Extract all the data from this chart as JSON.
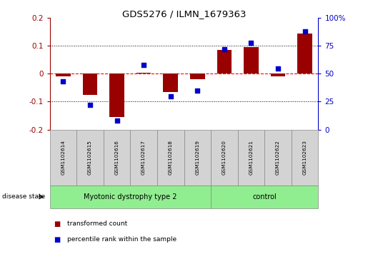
{
  "title": "GDS5276 / ILMN_1679363",
  "samples": [
    "GSM1102614",
    "GSM1102615",
    "GSM1102616",
    "GSM1102617",
    "GSM1102618",
    "GSM1102619",
    "GSM1102620",
    "GSM1102621",
    "GSM1102622",
    "GSM1102623"
  ],
  "red_values": [
    -0.01,
    -0.075,
    -0.155,
    0.005,
    -0.065,
    -0.02,
    0.085,
    0.095,
    -0.01,
    0.145
  ],
  "blue_values": [
    43,
    22,
    8,
    58,
    30,
    35,
    72,
    78,
    55,
    88
  ],
  "group1_label": "Myotonic dystrophy type 2",
  "group1_count": 6,
  "group2_label": "control",
  "group2_count": 4,
  "ylim_left": [
    -0.2,
    0.2
  ],
  "ylim_right": [
    0,
    100
  ],
  "yticks_left": [
    -0.2,
    -0.1,
    0.0,
    0.1,
    0.2
  ],
  "yticks_right": [
    0,
    25,
    50,
    75,
    100
  ],
  "ytick_labels_left": [
    "-0.2",
    "-0.1",
    "0",
    "0.1",
    "0.2"
  ],
  "ytick_labels_right": [
    "0",
    "25",
    "50",
    "75",
    "100%"
  ],
  "legend_red": "transformed count",
  "legend_blue": "percentile rank within the sample",
  "disease_state_label": "disease state",
  "bar_color": "#990000",
  "dot_color": "#0000cc",
  "group1_color": "#90ee90",
  "group2_color": "#90ee90",
  "label_box_color": "#d3d3d3",
  "background_color": "#ffffff",
  "plot_bg_color": "#ffffff"
}
